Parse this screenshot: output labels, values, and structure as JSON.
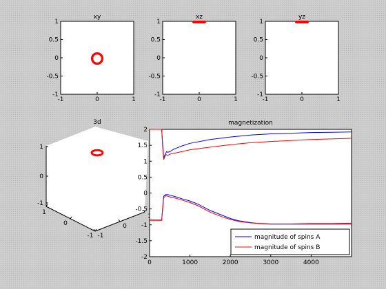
{
  "chart_data": [
    {
      "type": "scatter",
      "title": "xy",
      "xlim": [
        -1,
        1
      ],
      "ylim": [
        -1,
        1
      ],
      "xticks": [
        "-1",
        "0",
        "1"
      ],
      "yticks": [
        "1",
        "0.5",
        "0",
        "-0.5",
        "-1"
      ],
      "marker": {
        "shape": "ring",
        "cx": 0,
        "cy": -0.02,
        "r": 0.14,
        "color": "#ff0000"
      }
    },
    {
      "type": "scatter",
      "title": "xz",
      "xlim": [
        -1,
        1
      ],
      "ylim": [
        -1,
        1
      ],
      "xticks": [
        "-1",
        "0",
        "1"
      ],
      "yticks": [
        "1",
        "0.5",
        "0",
        "-0.5",
        "-1"
      ],
      "marker": {
        "shape": "bar",
        "x": [
          -0.15,
          0.15
        ],
        "y": 0.98,
        "color": "#ff0000"
      }
    },
    {
      "type": "scatter",
      "title": "yz",
      "xlim": [
        -1,
        1
      ],
      "ylim": [
        -1,
        1
      ],
      "xticks": [
        "-1",
        "0",
        "1"
      ],
      "yticks": [
        "1",
        "0.5",
        "0",
        "-0.5",
        "-1"
      ],
      "marker": {
        "shape": "bar",
        "x": [
          -0.15,
          0.15
        ],
        "y": 0.98,
        "color": "#ff0000"
      }
    },
    {
      "type": "scatter",
      "title": "3d",
      "zticks": [
        "1",
        "0",
        "-1"
      ],
      "xticks": [
        "1",
        "0",
        "-1"
      ],
      "yticks": [
        "-1",
        "0",
        "1"
      ],
      "marker": {
        "shape": "ellipse-ring",
        "color": "#ff0000"
      }
    },
    {
      "type": "line",
      "title": "magnetization",
      "xlim": [
        0,
        5000
      ],
      "ylim": [
        -2,
        2
      ],
      "xticks": [
        "0",
        "1000",
        "2000",
        "3000",
        "4000"
      ],
      "yticks": [
        "2",
        "1.5",
        "1",
        "0.5",
        "0",
        "-0.5",
        "-1",
        "-1.5",
        "-2"
      ],
      "series": [
        {
          "name": "magnitude of spins A",
          "color": "#0000ff",
          "x": [
            0,
            300,
            320,
            350,
            380,
            400,
            420,
            450,
            500,
            600,
            800,
            1000,
            1500,
            2000,
            2500,
            3000,
            3500,
            4000,
            4500,
            5000
          ],
          "y": [
            2,
            2,
            1.6,
            1.1,
            1.2,
            1.25,
            1.3,
            1.28,
            1.3,
            1.38,
            1.48,
            1.56,
            1.68,
            1.76,
            1.82,
            1.86,
            1.88,
            1.9,
            1.91,
            1.92
          ]
        },
        {
          "name": "magnitude of spins B",
          "color": "#ff0000",
          "x": [
            0,
            300,
            320,
            350,
            380,
            400,
            420,
            450,
            500,
            600,
            800,
            1000,
            1500,
            2000,
            2500,
            3000,
            3500,
            4000,
            4500,
            5000
          ],
          "y": [
            2,
            2,
            1.5,
            1.05,
            1.15,
            1.2,
            1.2,
            1.18,
            1.22,
            1.25,
            1.3,
            1.36,
            1.44,
            1.52,
            1.58,
            1.62,
            1.65,
            1.68,
            1.7,
            1.72
          ]
        },
        {
          "name": "",
          "color": "#0000ff",
          "x": [
            0,
            250,
            300,
            320,
            350,
            400,
            450,
            500,
            600,
            800,
            1000,
            1200,
            1500,
            1800,
            2000,
            2200,
            2500,
            2800,
            3000,
            3500,
            4000,
            4500,
            5000
          ],
          "y": [
            -0.85,
            -0.85,
            -0.85,
            -0.5,
            -0.1,
            -0.05,
            -0.05,
            -0.07,
            -0.1,
            -0.18,
            -0.25,
            -0.35,
            -0.55,
            -0.7,
            -0.8,
            -0.87,
            -0.93,
            -0.97,
            -0.98,
            -0.98,
            -0.98,
            -0.98,
            -0.98
          ]
        },
        {
          "name": "",
          "color": "#ff0000",
          "x": [
            0,
            250,
            300,
            320,
            350,
            400,
            450,
            500,
            600,
            800,
            1000,
            1200,
            1500,
            1800,
            2000,
            2200,
            2500,
            2800,
            3000,
            3500,
            4000,
            4500,
            5000
          ],
          "y": [
            -0.86,
            -0.86,
            -0.86,
            -0.55,
            -0.15,
            -0.08,
            -0.1,
            -0.12,
            -0.15,
            -0.22,
            -0.3,
            -0.4,
            -0.6,
            -0.75,
            -0.83,
            -0.89,
            -0.94,
            -0.96,
            -0.97,
            -0.97,
            -0.96,
            -0.96,
            -0.95
          ]
        }
      ],
      "legend": {
        "placement": "bottom-right",
        "entries": [
          {
            "label": "magnitude of spins A",
            "color": "#0000ff"
          },
          {
            "label": "magnitude of spins B",
            "color": "#ff0000"
          }
        ]
      }
    }
  ]
}
